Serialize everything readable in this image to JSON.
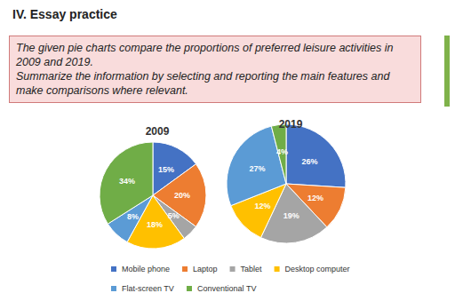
{
  "heading": "IV. Essay practice",
  "prompt": [
    "The given pie charts compare the proportions of preferred leisure activities in 2009 and 2019.",
    "Summarize the information by selecting and reporting the main features and make comparisons where relevant."
  ],
  "chart_data": [
    {
      "type": "pie",
      "title": "2009",
      "categories": [
        "Mobile phone",
        "Laptop",
        "Tablet",
        "Desktop computer",
        "Flat-screen TV",
        "Conventional TV"
      ],
      "values": [
        15,
        20,
        5,
        18,
        8,
        34
      ],
      "value_labels": [
        "15%",
        "20%",
        "5%",
        "18%",
        "8%",
        "34%"
      ],
      "colors": [
        "#4472c4",
        "#ed7d31",
        "#a5a5a5",
        "#ffc000",
        "#5b9bd5",
        "#70ad47"
      ],
      "data_labels": true,
      "legend": "bottom"
    },
    {
      "type": "pie",
      "title": "2019",
      "categories": [
        "Mobile phone",
        "Laptop",
        "Tablet",
        "Desktop computer",
        "Flat-screen TV",
        "Conventional TV"
      ],
      "values": [
        26,
        12,
        19,
        12,
        27,
        4
      ],
      "value_labels": [
        "26%",
        "12%",
        "19%",
        "12%",
        "27%",
        "4%"
      ],
      "colors": [
        "#4472c4",
        "#ed7d31",
        "#a5a5a5",
        "#ffc000",
        "#5b9bd5",
        "#70ad47"
      ],
      "data_labels": true,
      "legend": "bottom"
    }
  ]
}
